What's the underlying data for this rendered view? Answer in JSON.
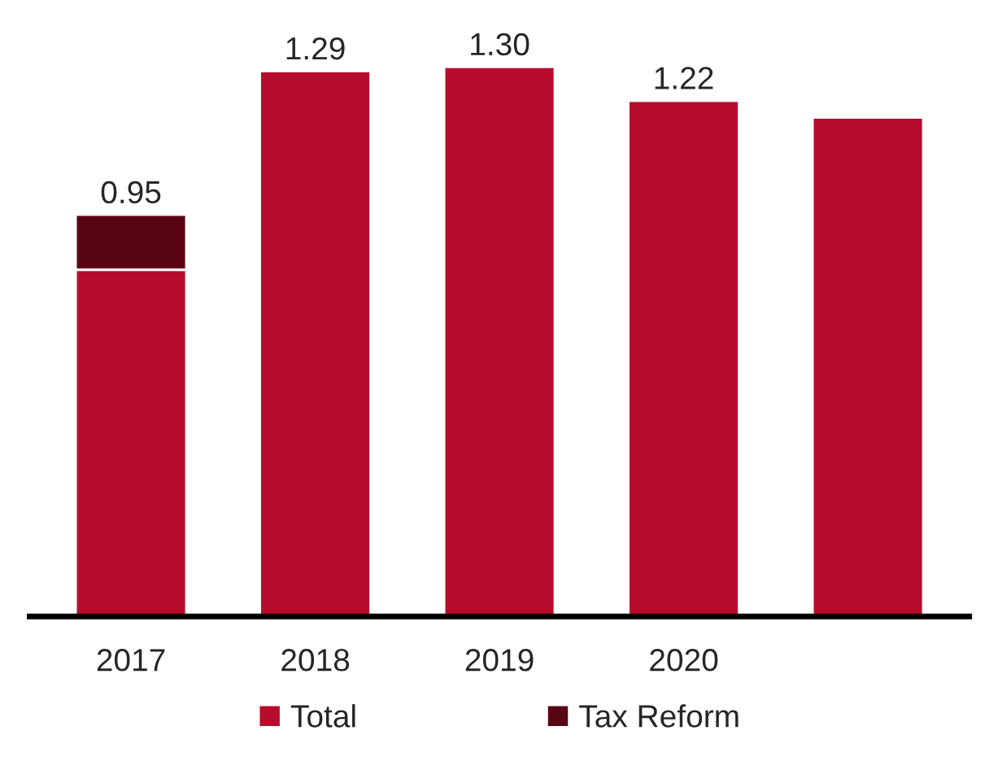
{
  "chart_data": {
    "type": "bar",
    "stacked": true,
    "categories": [
      "2017",
      "2018",
      "2019",
      "2020",
      null
    ],
    "series": [
      {
        "name": "Total",
        "color": "#b80c2c",
        "values": [
          0.82,
          1.29,
          1.3,
          1.22,
          1.18
        ],
        "value_labels": [
          null,
          "1.29",
          "1.30",
          "1.22",
          null
        ]
      },
      {
        "name": "Tax Reform",
        "color": "#5a0612",
        "values": [
          0.13,
          null,
          null,
          null,
          null
        ]
      }
    ],
    "totals": [
      "0.95",
      null,
      null,
      null,
      null
    ],
    "tick_labels": "x",
    "grid": false,
    "legend": "bottom"
  }
}
